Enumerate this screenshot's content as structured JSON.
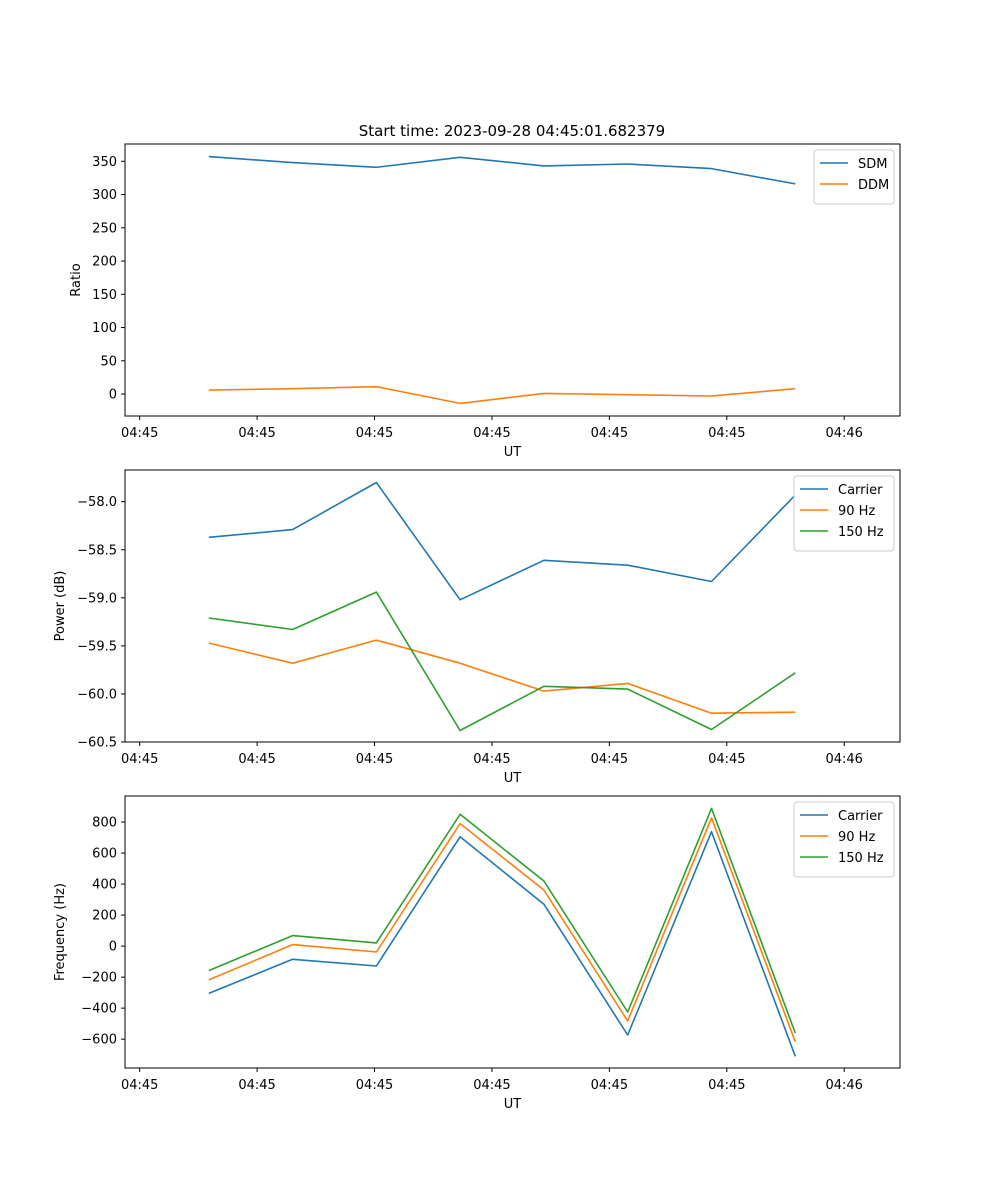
{
  "figure_title": "Start time: 2023-09-28 04:45:01.682379",
  "chart_data": [
    {
      "type": "line",
      "title": "Start time: 2023-09-28 04:45:01.682379",
      "xlabel": "UT",
      "ylabel": "Ratio",
      "xticks": [
        "04:45",
        "04:45",
        "04:45",
        "04:45",
        "04:45",
        "04:45",
        "04:46"
      ],
      "yticks": [
        "0",
        "50",
        "100",
        "150",
        "200",
        "250",
        "300",
        "350"
      ],
      "ytick_values": [
        0,
        50,
        100,
        150,
        200,
        250,
        300,
        350
      ],
      "ylim": [
        -33,
        376
      ],
      "x": [
        1,
        2,
        3,
        4,
        5,
        6,
        7,
        8
      ],
      "xlim": [
        0,
        9.25
      ],
      "legend_position": "top-right",
      "series": [
        {
          "name": "SDM",
          "color": "#1f77b4",
          "values": [
            357,
            348,
            341,
            356,
            343,
            346,
            339,
            316
          ]
        },
        {
          "name": "DDM",
          "color": "#ff7f0e",
          "values": [
            6,
            8,
            11,
            -14,
            1,
            -1,
            -3,
            8
          ]
        }
      ]
    },
    {
      "type": "line",
      "xlabel": "UT",
      "ylabel": "Power (dB)",
      "xticks": [
        "04:45",
        "04:45",
        "04:45",
        "04:45",
        "04:45",
        "04:45",
        "04:46"
      ],
      "yticks": [
        "−58.0",
        "−58.5",
        "−59.0",
        "−59.5",
        "−60.0",
        "−60.5"
      ],
      "ytick_values": [
        -58.0,
        -58.5,
        -59.0,
        -59.5,
        -60.0,
        -60.5
      ],
      "ylim": [
        -60.5,
        -57.67
      ],
      "x": [
        1,
        2,
        3,
        4,
        5,
        6,
        7,
        8
      ],
      "xlim": [
        0,
        9.25
      ],
      "legend_position": "top-right",
      "series": [
        {
          "name": "Carrier",
          "color": "#1f77b4",
          "values": [
            -58.37,
            -58.29,
            -57.8,
            -59.02,
            -58.61,
            -58.66,
            -58.83,
            -57.93
          ]
        },
        {
          "name": "90 Hz",
          "color": "#ff7f0e",
          "values": [
            -59.47,
            -59.68,
            -59.44,
            -59.68,
            -59.97,
            -59.89,
            -60.2,
            -60.19
          ]
        },
        {
          "name": "150 Hz",
          "color": "#2ca02c",
          "values": [
            -59.21,
            -59.33,
            -58.94,
            -60.38,
            -59.92,
            -59.95,
            -60.37,
            -59.78
          ]
        }
      ]
    },
    {
      "type": "line",
      "xlabel": "UT",
      "ylabel": "Frequency (Hz)",
      "xticks": [
        "04:45",
        "04:45",
        "04:45",
        "04:45",
        "04:45",
        "04:45",
        "04:46"
      ],
      "yticks": [
        "−600",
        "−400",
        "−200",
        "0",
        "200",
        "400",
        "600",
        "800"
      ],
      "ytick_values": [
        -600,
        -400,
        -200,
        0,
        200,
        400,
        600,
        800
      ],
      "ylim": [
        -786,
        968
      ],
      "x": [
        1,
        2,
        3,
        4,
        5,
        6,
        7,
        8
      ],
      "xlim": [
        0,
        9.25
      ],
      "legend_position": "top-right",
      "series": [
        {
          "name": "Carrier",
          "color": "#1f77b4",
          "values": [
            -305,
            -85,
            -128,
            705,
            270,
            -573,
            738,
            -711
          ]
        },
        {
          "name": "90 Hz",
          "color": "#ff7f0e",
          "values": [
            -218,
            10,
            -38,
            790,
            362,
            -482,
            827,
            -617
          ]
        },
        {
          "name": "150 Hz",
          "color": "#2ca02c",
          "values": [
            -158,
            68,
            21,
            850,
            420,
            -425,
            888,
            -560
          ]
        }
      ]
    }
  ]
}
